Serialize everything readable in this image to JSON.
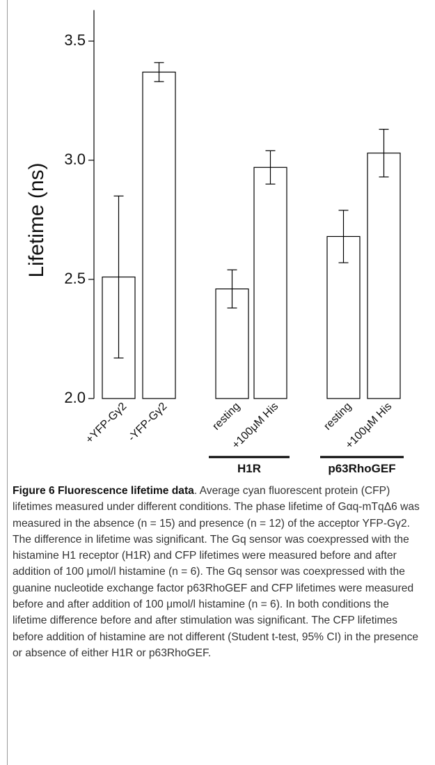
{
  "chart_data": {
    "type": "bar",
    "y_label": "Lifetime (ns)",
    "categories": [
      "+YFP-Gγ2",
      "-YFP-Gγ2",
      "resting",
      "+100μM His",
      "resting",
      "+100μM His"
    ],
    "values": [
      2.51,
      3.37,
      2.46,
      2.97,
      2.68,
      3.03
    ],
    "errors": [
      0.34,
      0.04,
      0.08,
      0.07,
      0.11,
      0.1
    ],
    "group_labels": [
      "H1R",
      "p63RhoGEF"
    ],
    "color": "#ffffff",
    "ylim": [
      2.0,
      3.63
    ],
    "yticks": [
      {
        "value": 2,
        "label": "2.0"
      },
      2.5,
      {
        "value": 3,
        "label": "3.0"
      },
      3.5
    ]
  },
  "caption": {
    "title": "Figure 6 Fluorescence lifetime data",
    "text": ". Average cyan fluorescent protein (CFP) lifetimes measured under different conditions. The phase lifetime of Gαq-mTqΔ6 was measured in the absence (n = 15) and presence (n = 12) of the acceptor YFP-Gγ2. The difference in lifetime was significant. The Gq sensor was coexpressed with the histamine H1 receptor (H1R) and CFP lifetimes were measured before and after addition of 100 μmol/l histamine (n = 6). The Gq sensor was coexpressed with the guanine nucleotide exchange factor p63RhoGEF and CFP lifetimes were measured before and after addition of 100 μmol/l histamine (n = 6). In both conditions the lifetime difference before and after stimulation was significant. The CFP lifetimes before addition of histamine are not different (Student t-test, 95% CI) in the presence or absence of either H1R or p63RhoGEF."
  }
}
